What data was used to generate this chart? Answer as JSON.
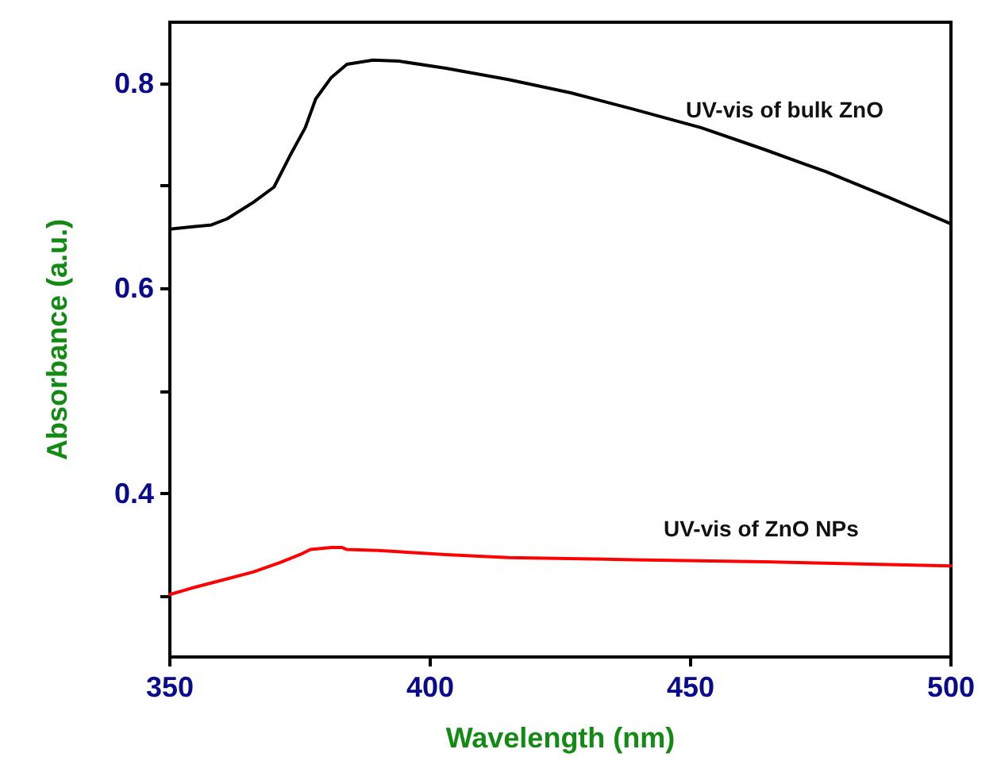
{
  "chart_data": {
    "type": "line",
    "xlabel": "Wavelength (nm)",
    "ylabel": "Absorbance (a.u.)",
    "xlim": [
      350,
      500
    ],
    "xticks": [
      350,
      400,
      450,
      500
    ],
    "ylim": [
      0.24,
      0.86
    ],
    "yticks": [
      {
        "value": 0.3,
        "label": null
      },
      0.4,
      {
        "value": 0.5,
        "label": null
      },
      0.6,
      {
        "value": 0.7,
        "label": null
      },
      0.8
    ],
    "grid": false,
    "legend": false,
    "marker": "none",
    "line_style": "solid",
    "series": [
      {
        "name": "UV-vis of bulk ZnO",
        "color": "#000000",
        "x": [
          350,
          354,
          358,
          361,
          366,
          370,
          373,
          376,
          378,
          381,
          384,
          389,
          394,
          403,
          415,
          427,
          439,
          452,
          464,
          476,
          488,
          500
        ],
        "values": [
          0.658,
          0.66,
          0.662,
          0.668,
          0.684,
          0.699,
          0.729,
          0.757,
          0.785,
          0.806,
          0.819,
          0.823,
          0.822,
          0.815,
          0.804,
          0.791,
          0.775,
          0.757,
          0.736,
          0.714,
          0.689,
          0.663
        ]
      },
      {
        "name": "UV-vis of ZnO NPs",
        "color": "#ff0000",
        "x": [
          350,
          354,
          360,
          366,
          371,
          375,
          377,
          381,
          383,
          384,
          390,
          403,
          415,
          439,
          464,
          500
        ],
        "values": [
          0.301,
          0.307,
          0.315,
          0.323,
          0.332,
          0.34,
          0.345,
          0.347,
          0.347,
          0.345,
          0.344,
          0.34,
          0.337,
          0.335,
          0.333,
          0.329
        ]
      }
    ]
  }
}
